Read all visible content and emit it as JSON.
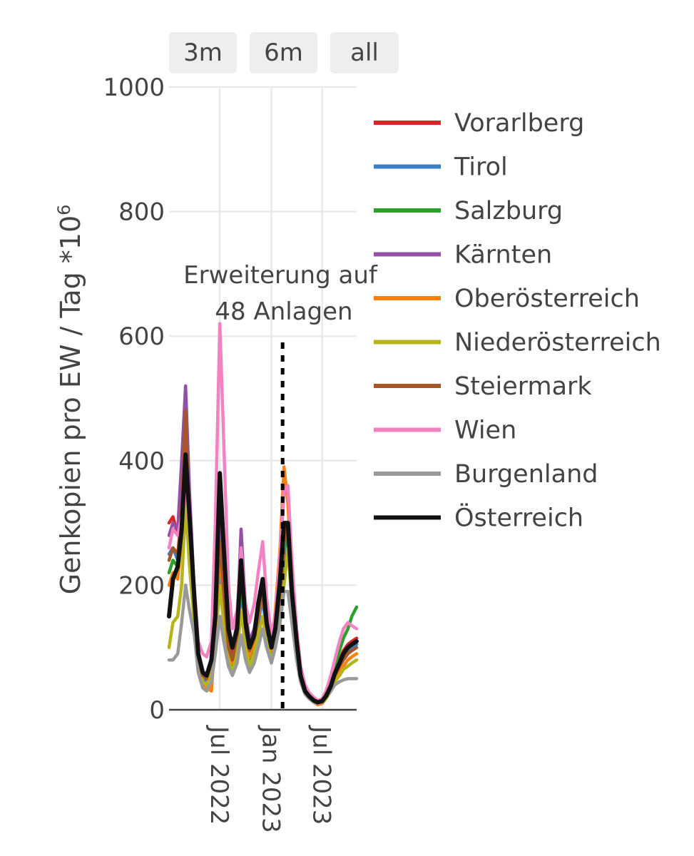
{
  "buttons": [
    {
      "label": "3m"
    },
    {
      "label": "6m"
    },
    {
      "label": "all"
    }
  ],
  "annotation": {
    "line1": "Erweiterung auf",
    "line2": "48 Anlagen",
    "date": "2023-02-10"
  },
  "chart_data": {
    "type": "line",
    "ylabel": "Genkopien pro EW / Tag *10",
    "ylabel_superscript": "6",
    "ylim": [
      0,
      1000
    ],
    "yticks": [
      0,
      200,
      400,
      600,
      800,
      1000
    ],
    "xlim": [
      "2022-01-01",
      "2023-11-01"
    ],
    "xticks": [
      {
        "date": "2022-07-01",
        "label": "Jul 2022"
      },
      {
        "date": "2023-01-01",
        "label": "Jan 2023"
      },
      {
        "date": "2023-07-01",
        "label": "Jul 2023"
      }
    ],
    "grid": true,
    "legend_position": "right",
    "x": [
      "2022-01-01",
      "2022-01-15",
      "2022-02-01",
      "2022-02-15",
      "2022-03-01",
      "2022-03-15",
      "2022-04-01",
      "2022-04-15",
      "2022-05-01",
      "2022-05-15",
      "2022-06-01",
      "2022-06-15",
      "2022-07-01",
      "2022-07-15",
      "2022-08-01",
      "2022-08-15",
      "2022-09-01",
      "2022-09-15",
      "2022-10-01",
      "2022-10-15",
      "2022-11-01",
      "2022-11-15",
      "2022-12-01",
      "2022-12-15",
      "2023-01-01",
      "2023-01-15",
      "2023-02-01",
      "2023-02-15",
      "2023-03-01",
      "2023-03-15",
      "2023-04-01",
      "2023-04-15",
      "2023-05-01",
      "2023-05-15",
      "2023-06-01",
      "2023-06-15",
      "2023-07-01",
      "2023-07-15",
      "2023-08-01",
      "2023-08-15",
      "2023-09-01",
      "2023-09-15",
      "2023-10-01",
      "2023-10-15",
      "2023-11-01"
    ],
    "series": [
      {
        "name": "Vorarlberg",
        "color": "#d62728",
        "values": [
          300,
          310,
          280,
          350,
          420,
          300,
          180,
          90,
          60,
          55,
          80,
          150,
          290,
          200,
          110,
          90,
          130,
          250,
          150,
          110,
          130,
          170,
          200,
          140,
          110,
          120,
          160,
          250,
          300,
          200,
          110,
          60,
          35,
          25,
          18,
          12,
          15,
          25,
          40,
          60,
          80,
          95,
          105,
          110,
          115
        ]
      },
      {
        "name": "Tirol",
        "color": "#3a7fc1",
        "values": [
          250,
          260,
          240,
          300,
          380,
          250,
          160,
          80,
          50,
          45,
          70,
          140,
          220,
          150,
          90,
          70,
          110,
          200,
          110,
          65,
          100,
          140,
          180,
          120,
          90,
          110,
          150,
          230,
          280,
          180,
          100,
          55,
          30,
          22,
          15,
          10,
          12,
          20,
          35,
          55,
          70,
          85,
          95,
          100,
          105
        ]
      },
      {
        "name": "Salzburg",
        "color": "#2ca02c",
        "values": [
          220,
          240,
          230,
          290,
          360,
          260,
          170,
          85,
          55,
          50,
          75,
          150,
          260,
          170,
          100,
          80,
          120,
          210,
          120,
          80,
          110,
          150,
          190,
          130,
          100,
          120,
          170,
          260,
          290,
          190,
          110,
          60,
          35,
          25,
          18,
          13,
          15,
          25,
          45,
          70,
          95,
          115,
          130,
          150,
          165
        ]
      },
      {
        "name": "Kärnten",
        "color": "#9450a6",
        "values": [
          280,
          300,
          290,
          400,
          520,
          350,
          190,
          90,
          60,
          55,
          80,
          160,
          300,
          220,
          120,
          100,
          140,
          290,
          160,
          110,
          130,
          170,
          200,
          140,
          110,
          130,
          180,
          270,
          300,
          200,
          110,
          60,
          35,
          25,
          18,
          12,
          15,
          25,
          40,
          60,
          75,
          90,
          100,
          105,
          110
        ]
      },
      {
        "name": "Oberösterreich",
        "color": "#ff7f0e",
        "values": [
          200,
          220,
          210,
          280,
          400,
          280,
          170,
          80,
          45,
          35,
          30,
          120,
          250,
          180,
          100,
          75,
          110,
          230,
          130,
          85,
          110,
          150,
          190,
          130,
          95,
          160,
          260,
          390,
          330,
          210,
          110,
          55,
          30,
          20,
          12,
          8,
          10,
          18,
          30,
          45,
          60,
          70,
          80,
          85,
          90
        ]
      },
      {
        "name": "Niederösterreich",
        "color": "#b5b51b",
        "values": [
          100,
          140,
          150,
          200,
          330,
          230,
          140,
          70,
          45,
          40,
          60,
          110,
          200,
          140,
          80,
          60,
          90,
          160,
          100,
          70,
          90,
          120,
          150,
          110,
          80,
          100,
          140,
          200,
          260,
          170,
          90,
          50,
          28,
          20,
          14,
          10,
          12,
          18,
          30,
          45,
          55,
          65,
          70,
          75,
          80
        ]
      },
      {
        "name": "Steiermark",
        "color": "#a65628",
        "values": [
          240,
          260,
          250,
          320,
          480,
          300,
          180,
          85,
          55,
          50,
          75,
          140,
          270,
          190,
          100,
          80,
          120,
          240,
          130,
          95,
          115,
          155,
          190,
          130,
          100,
          130,
          190,
          270,
          300,
          190,
          105,
          58,
          32,
          22,
          15,
          10,
          12,
          20,
          35,
          55,
          70,
          80,
          90,
          95,
          100
        ]
      },
      {
        "name": "Wien",
        "color": "#f283c1",
        "values": [
          260,
          290,
          280,
          310,
          360,
          290,
          200,
          110,
          90,
          85,
          110,
          300,
          620,
          430,
          200,
          130,
          160,
          260,
          170,
          140,
          170,
          220,
          270,
          180,
          120,
          150,
          250,
          350,
          360,
          240,
          130,
          70,
          40,
          28,
          20,
          15,
          18,
          30,
          55,
          80,
          110,
          130,
          140,
          135,
          130
        ]
      },
      {
        "name": "Burgenland",
        "color": "#999999",
        "values": [
          80,
          80,
          90,
          140,
          200,
          160,
          120,
          60,
          35,
          30,
          45,
          90,
          150,
          110,
          70,
          55,
          75,
          120,
          80,
          60,
          75,
          100,
          130,
          100,
          75,
          100,
          140,
          190,
          190,
          140,
          80,
          45,
          25,
          18,
          12,
          10,
          12,
          20,
          30,
          40,
          45,
          48,
          50,
          50,
          50
        ]
      },
      {
        "name": "Österreich",
        "color": "#111111",
        "values": [
          150,
          210,
          230,
          290,
          410,
          310,
          180,
          90,
          60,
          55,
          80,
          150,
          380,
          260,
          130,
          100,
          130,
          240,
          140,
          100,
          120,
          170,
          210,
          140,
          100,
          130,
          210,
          300,
          300,
          190,
          110,
          55,
          30,
          22,
          15,
          12,
          14,
          22,
          38,
          58,
          75,
          90,
          100,
          105,
          110
        ]
      }
    ]
  }
}
